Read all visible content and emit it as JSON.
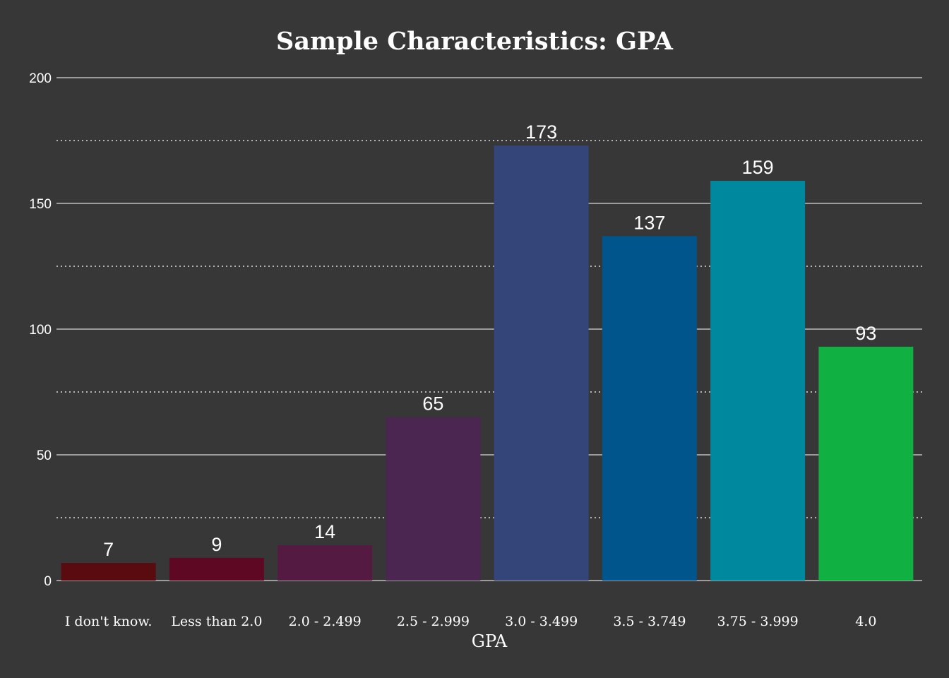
{
  "chart_data": {
    "type": "bar",
    "title": "Sample Characteristics: GPA",
    "xlabel": "GPA",
    "ylabel": "",
    "ylim": [
      0,
      200
    ],
    "yticks": [
      0,
      50,
      100,
      150,
      200
    ],
    "minor_gridlines": [
      25,
      75,
      125,
      175
    ],
    "grid": true,
    "categories": [
      "I don't know.",
      "Less than 2.0",
      "2.0 - 2.499",
      "2.5 - 2.999",
      "3.0 - 3.499",
      "3.5 - 3.749",
      "3.75 - 3.999",
      "4.0"
    ],
    "values": [
      7,
      9,
      14,
      65,
      173,
      137,
      159,
      93
    ],
    "colors": [
      "#5a0b10",
      "#5e0823",
      "#551a42",
      "#4b2651",
      "#34457a",
      "#00558c",
      "#00899e",
      "#11b042"
    ]
  }
}
